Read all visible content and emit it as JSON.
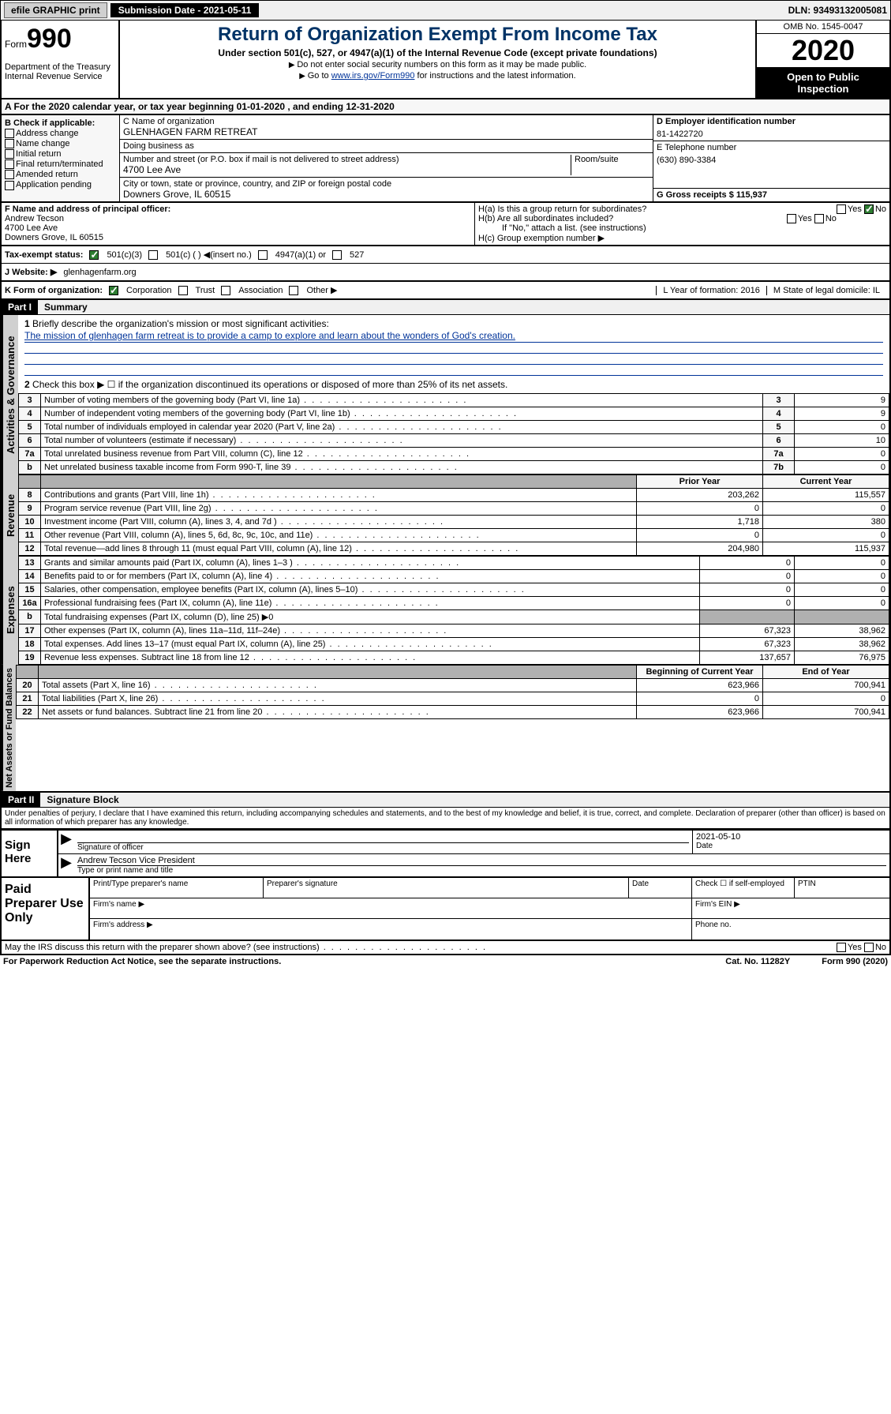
{
  "topbar": {
    "efile_btn": "efile GRAPHIC print",
    "submission_label": "Submission Date - 2021-05-11",
    "dln_label": "DLN: 93493132005081"
  },
  "header": {
    "form_prefix": "Form",
    "form_number": "990",
    "dept": "Department of the Treasury\nInternal Revenue Service",
    "title": "Return of Organization Exempt From Income Tax",
    "subtitle": "Under section 501(c), 527, or 4947(a)(1) of the Internal Revenue Code (except private foundations)",
    "note1": "Do not enter social security numbers on this form as it may be made public.",
    "note2_pre": "Go to ",
    "note2_link": "www.irs.gov/Form990",
    "note2_post": " for instructions and the latest information.",
    "omb": "OMB No. 1545-0047",
    "year": "2020",
    "open": "Open to Public Inspection"
  },
  "section_a": {
    "text": "A For the 2020 calendar year, or tax year beginning 01-01-2020   , and ending 12-31-2020"
  },
  "col_b": {
    "title": "B Check if applicable:",
    "items": [
      "Address change",
      "Name change",
      "Initial return",
      "Final return/terminated",
      "Amended return",
      "Application pending"
    ]
  },
  "col_c": {
    "name_label": "C Name of organization",
    "name_value": "GLENHAGEN FARM RETREAT",
    "dba_label": "Doing business as",
    "dba_value": "",
    "addr_label": "Number and street (or P.O. box if mail is not delivered to street address)",
    "room_label": "Room/suite",
    "addr_value": "4700 Lee Ave",
    "city_label": "City or town, state or province, country, and ZIP or foreign postal code",
    "city_value": "Downers Grove, IL  60515"
  },
  "col_d": {
    "ein_label": "D Employer identification number",
    "ein_value": "81-1422720",
    "phone_label": "E Telephone number",
    "phone_value": "(630) 890-3384",
    "gross_label": "G Gross receipts $ 115,937"
  },
  "fgh": {
    "f_label": "F  Name and address of principal officer:",
    "f_name": "Andrew Tecson",
    "f_addr1": "4700 Lee Ave",
    "f_addr2": "Downers Grove, IL  60515",
    "ha_label": "H(a)  Is this a group return for subordinates?",
    "hb_label": "H(b)  Are all subordinates included?",
    "hb_note": "If \"No,\" attach a list. (see instructions)",
    "hc_label": "H(c)  Group exemption number ▶",
    "yes": "Yes",
    "no": "No"
  },
  "status": {
    "label": "Tax-exempt status:",
    "opt1": "501(c)(3)",
    "opt2": "501(c) (  ) ◀(insert no.)",
    "opt3": "4947(a)(1) or",
    "opt4": "527"
  },
  "website": {
    "label": "J   Website: ▶",
    "value": "glenhagenfarm.org"
  },
  "korg": {
    "k_label": "K Form of organization:",
    "k_opts": [
      "Corporation",
      "Trust",
      "Association",
      "Other ▶"
    ],
    "l_label": "L Year of formation: 2016",
    "m_label": "M State of legal domicile: IL"
  },
  "part1": {
    "header": "Part I",
    "title": "Summary",
    "tab_ag": "Activities & Governance",
    "tab_rev": "Revenue",
    "tab_exp": "Expenses",
    "tab_na": "Net Assets or Fund Balances",
    "line1_label": "Briefly describe the organization's mission or most significant activities:",
    "mission": "The mission of glenhagen farm retreat is to provide a camp to explore and learn about the wonders of God's creation.",
    "line2_label": "Check this box ▶ ☐  if the organization discontinued its operations or disposed of more than 25% of its net assets.",
    "rows_ag": [
      {
        "n": "3",
        "desc": "Number of voting members of the governing body (Part VI, line 1a)",
        "box": "3",
        "val": "9"
      },
      {
        "n": "4",
        "desc": "Number of independent voting members of the governing body (Part VI, line 1b)",
        "box": "4",
        "val": "9"
      },
      {
        "n": "5",
        "desc": "Total number of individuals employed in calendar year 2020 (Part V, line 2a)",
        "box": "5",
        "val": "0"
      },
      {
        "n": "6",
        "desc": "Total number of volunteers (estimate if necessary)",
        "box": "6",
        "val": "10"
      },
      {
        "n": "7a",
        "desc": "Total unrelated business revenue from Part VIII, column (C), line 12",
        "box": "7a",
        "val": "0"
      },
      {
        "n": "b",
        "desc": "Net unrelated business taxable income from Form 990-T, line 39",
        "box": "7b",
        "val": "0"
      }
    ],
    "col_prior": "Prior Year",
    "col_current": "Current Year",
    "rows_rev": [
      {
        "n": "8",
        "desc": "Contributions and grants (Part VIII, line 1h)",
        "p": "203,262",
        "c": "115,557"
      },
      {
        "n": "9",
        "desc": "Program service revenue (Part VIII, line 2g)",
        "p": "0",
        "c": "0"
      },
      {
        "n": "10",
        "desc": "Investment income (Part VIII, column (A), lines 3, 4, and 7d )",
        "p": "1,718",
        "c": "380"
      },
      {
        "n": "11",
        "desc": "Other revenue (Part VIII, column (A), lines 5, 6d, 8c, 9c, 10c, and 11e)",
        "p": "0",
        "c": "0"
      },
      {
        "n": "12",
        "desc": "Total revenue—add lines 8 through 11 (must equal Part VIII, column (A), line 12)",
        "p": "204,980",
        "c": "115,937"
      }
    ],
    "rows_exp": [
      {
        "n": "13",
        "desc": "Grants and similar amounts paid (Part IX, column (A), lines 1–3 )",
        "p": "0",
        "c": "0"
      },
      {
        "n": "14",
        "desc": "Benefits paid to or for members (Part IX, column (A), line 4)",
        "p": "0",
        "c": "0"
      },
      {
        "n": "15",
        "desc": "Salaries, other compensation, employee benefits (Part IX, column (A), lines 5–10)",
        "p": "0",
        "c": "0"
      },
      {
        "n": "16a",
        "desc": "Professional fundraising fees (Part IX, column (A), line 11e)",
        "p": "0",
        "c": "0"
      },
      {
        "n": "b",
        "desc": "Total fundraising expenses (Part IX, column (D), line 25) ▶0",
        "shade": true
      },
      {
        "n": "17",
        "desc": "Other expenses (Part IX, column (A), lines 11a–11d, 11f–24e)",
        "p": "67,323",
        "c": "38,962"
      },
      {
        "n": "18",
        "desc": "Total expenses. Add lines 13–17 (must equal Part IX, column (A), line 25)",
        "p": "67,323",
        "c": "38,962"
      },
      {
        "n": "19",
        "desc": "Revenue less expenses. Subtract line 18 from line 12",
        "p": "137,657",
        "c": "76,975"
      }
    ],
    "col_begin": "Beginning of Current Year",
    "col_end": "End of Year",
    "rows_na": [
      {
        "n": "20",
        "desc": "Total assets (Part X, line 16)",
        "p": "623,966",
        "c": "700,941"
      },
      {
        "n": "21",
        "desc": "Total liabilities (Part X, line 26)",
        "p": "0",
        "c": "0"
      },
      {
        "n": "22",
        "desc": "Net assets or fund balances. Subtract line 21 from line 20",
        "p": "623,966",
        "c": "700,941"
      }
    ]
  },
  "part2": {
    "header": "Part II",
    "title": "Signature Block",
    "perjury": "Under penalties of perjury, I declare that I have examined this return, including accompanying schedules and statements, and to the best of my knowledge and belief, it is true, correct, and complete. Declaration of preparer (other than officer) is based on all information of which preparer has any knowledge.",
    "sign_here": "Sign Here",
    "sig_officer_label": "Signature of officer",
    "date_label": "Date",
    "date_value": "2021-05-10",
    "name_title_value": "Andrew Tecson  Vice President",
    "name_title_label": "Type or print name and title",
    "paid_prep": "Paid Preparer Use Only",
    "print_name": "Print/Type preparer's name",
    "prep_sig": "Preparer's signature",
    "prep_date": "Date",
    "check_self": "Check ☐ if self-employed",
    "ptin": "PTIN",
    "firm_name": "Firm's name  ▶",
    "firm_ein": "Firm's EIN ▶",
    "firm_addr": "Firm's address ▶",
    "phone": "Phone no."
  },
  "footer": {
    "discuss": "May the IRS discuss this return with the preparer shown above? (see instructions)",
    "yes": "Yes",
    "no": "No",
    "paperwork": "For Paperwork Reduction Act Notice, see the separate instructions.",
    "cat": "Cat. No. 11282Y",
    "form": "Form 990 (2020)"
  }
}
